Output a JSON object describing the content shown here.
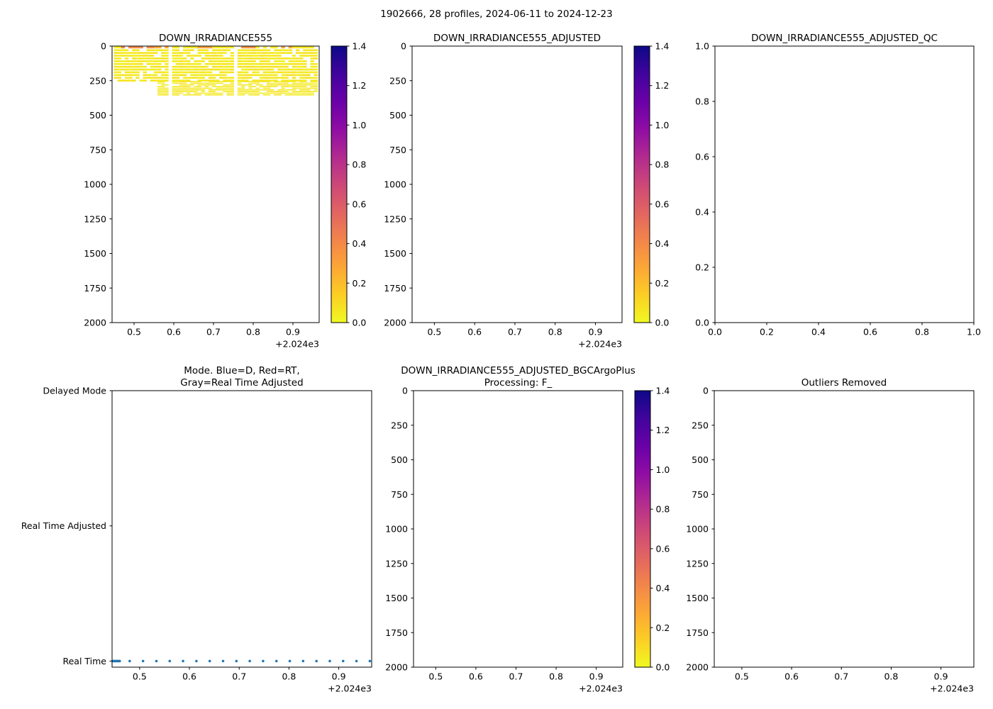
{
  "figure": {
    "suptitle": "1902666, 28 profiles, 2024-06-11 to 2024-12-23",
    "n_profiles": 28,
    "date_range": [
      "2024-06-11",
      "2024-12-23"
    ],
    "colors": {
      "background": "#ffffff",
      "axes": "#000000",
      "text": "#000000",
      "scatter_dot": "#1f77b4",
      "colormap_name": "plasma_r",
      "colormap_stops_low_to_high": [
        "#f0f921",
        "#fcce25",
        "#fca636",
        "#f2844b",
        "#e16462",
        "#cc4778",
        "#b12a90",
        "#8f0da4",
        "#6a00a8",
        "#41049d",
        "#0d0887"
      ]
    }
  },
  "chart_data": [
    {
      "id": "irr",
      "type": "heatmap",
      "title": [
        "DOWN_IRRADIANCE555"
      ],
      "xlim": [
        2024.4446,
        2024.9661
      ],
      "x_tick_values": [
        2024.5,
        2024.6,
        2024.7,
        2024.8,
        2024.9
      ],
      "x_tick_labels": [
        "0.5",
        "0.6",
        "0.7",
        "0.8",
        "0.9"
      ],
      "x_offset_label": "+2.024e3",
      "ylim_top_bottom": [
        0,
        2000
      ],
      "y_tick_values": [
        0,
        250,
        500,
        750,
        1000,
        1250,
        1500,
        1750,
        2000
      ],
      "y_tick_labels": [
        "0",
        "250",
        "500",
        "750",
        "1000",
        "1250",
        "1500",
        "1750",
        "2000"
      ],
      "colorbar": {
        "vmin": 0.0,
        "vmax": 1.4,
        "tick_values": [
          0.0,
          0.2,
          0.4,
          0.6,
          0.8,
          1.0,
          1.2,
          1.4
        ],
        "tick_labels": [
          "0.0",
          "0.2",
          "0.4",
          "0.6",
          "0.8",
          "1.0",
          "1.2",
          "1.4"
        ]
      },
      "heatmap": {
        "vmin": 0.0,
        "vmax": 1.4,
        "time_range": [
          2024.449,
          2024.962
        ],
        "coverage_segments": [
          {
            "t0": 2024.449,
            "t1": 2024.561,
            "depth_max": 250
          },
          {
            "t0": 2024.561,
            "t1": 2024.962,
            "depth_max": 350
          }
        ],
        "time_gaps": [
          2024.587,
          2024.752
        ],
        "row_zones": [
          {
            "d0": 0,
            "d1": 250,
            "row_step": 20
          },
          {
            "d0": 250,
            "d1": 350,
            "row_step": 12
          }
        ],
        "n_time_bins": 56,
        "missing_fraction": 0.16,
        "seed": 20241223,
        "base_value": 0.03,
        "surface_values": [
          {
            "t0": 2024.449,
            "t1": 2024.463,
            "value": 0.03
          },
          {
            "t0": 2024.463,
            "t1": 2024.546,
            "value": 0.4
          },
          {
            "t0": 2024.546,
            "t1": 2024.6,
            "value": 0.28
          },
          {
            "t0": 2024.6,
            "t1": 2024.664,
            "value": 0.05
          },
          {
            "t0": 2024.664,
            "t1": 2024.7,
            "value": 0.3
          },
          {
            "t0": 2024.7,
            "t1": 2024.755,
            "value": 0.05
          },
          {
            "t0": 2024.755,
            "t1": 2024.805,
            "value": 0.36
          },
          {
            "t0": 2024.805,
            "t1": 2024.859,
            "value": 0.05
          },
          {
            "t0": 2024.859,
            "t1": 2024.895,
            "value": 0.28
          },
          {
            "t0": 2024.895,
            "t1": 2024.962,
            "value": 0.05
          }
        ]
      }
    },
    {
      "id": "adj",
      "type": "heatmap",
      "title": [
        "DOWN_IRRADIANCE555_ADJUSTED"
      ],
      "xlim": [
        2024.4446,
        2024.9661
      ],
      "x_tick_values": [
        2024.5,
        2024.6,
        2024.7,
        2024.8,
        2024.9
      ],
      "x_tick_labels": [
        "0.5",
        "0.6",
        "0.7",
        "0.8",
        "0.9"
      ],
      "x_offset_label": "+2.024e3",
      "ylim_top_bottom": [
        0,
        2000
      ],
      "y_tick_values": [
        0,
        250,
        500,
        750,
        1000,
        1250,
        1500,
        1750,
        2000
      ],
      "y_tick_labels": [
        "0",
        "250",
        "500",
        "750",
        "1000",
        "1250",
        "1500",
        "1750",
        "2000"
      ],
      "colorbar": {
        "vmin": 0.0,
        "vmax": 1.4,
        "tick_values": [
          0.0,
          0.2,
          0.4,
          0.6,
          0.8,
          1.0,
          1.2,
          1.4
        ],
        "tick_labels": [
          "0.0",
          "0.2",
          "0.4",
          "0.6",
          "0.8",
          "1.0",
          "1.2",
          "1.4"
        ]
      },
      "heatmap": null
    },
    {
      "id": "qc",
      "type": "heatmap",
      "title": [
        "DOWN_IRRADIANCE555_ADJUSTED_QC"
      ],
      "xlim": [
        0.0,
        1.0
      ],
      "x_tick_values": [
        0.0,
        0.2,
        0.4,
        0.6,
        0.8,
        1.0
      ],
      "x_tick_labels": [
        "0.0",
        "0.2",
        "0.4",
        "0.6",
        "0.8",
        "1.0"
      ],
      "x_offset_label": null,
      "ylim_top_bottom": [
        1.0,
        0.0
      ],
      "y_tick_values": [
        1.0,
        0.8,
        0.6,
        0.4,
        0.2,
        0.0
      ],
      "y_tick_labels": [
        "1.0",
        "0.8",
        "0.6",
        "0.4",
        "0.2",
        "0.0"
      ],
      "colorbar": null,
      "heatmap": null
    },
    {
      "id": "mode",
      "type": "scatter",
      "title": [
        "Mode. Blue=D, Red=RT,",
        "Gray=Real Time Adjusted"
      ],
      "xlim": [
        2024.4446,
        2024.9661
      ],
      "x_tick_values": [
        2024.5,
        2024.6,
        2024.7,
        2024.8,
        2024.9
      ],
      "x_tick_labels": [
        "0.5",
        "0.6",
        "0.7",
        "0.8",
        "0.9"
      ],
      "x_offset_label": "+2.024e3",
      "ylim_top_bottom": [
        2.0,
        -0.045
      ],
      "y_tick_values": [
        2,
        1,
        0
      ],
      "y_tick_labels": [
        "Delayed Mode",
        "Real Time Adjusted",
        "Real Time"
      ],
      "colorbar": null,
      "legend_note": "Blue=D, Red=RT, Gray=Real Time Adjusted",
      "points": {
        "y_category": "Real Time",
        "y_value": 0,
        "x": [
          2024.446,
          2024.4478,
          2024.4495,
          2024.4513,
          2024.453,
          2024.4548,
          2024.4565,
          2024.4583,
          2024.46,
          2024.48,
          2024.5068,
          2024.5336,
          2024.5604,
          2024.5872,
          2024.614,
          2024.6408,
          2024.6676,
          2024.6944,
          2024.7212,
          2024.748,
          2024.7748,
          2024.8016,
          2024.8284,
          2024.8552,
          2024.882,
          2024.9088,
          2024.9356,
          2024.9624
        ]
      }
    },
    {
      "id": "bgc",
      "type": "heatmap",
      "title": [
        "DOWN_IRRADIANCE555_ADJUSTED_BGCArgoPlus",
        "Processing: F_"
      ],
      "xlim": [
        2024.4446,
        2024.9661
      ],
      "x_tick_values": [
        2024.5,
        2024.6,
        2024.7,
        2024.8,
        2024.9
      ],
      "x_tick_labels": [
        "0.5",
        "0.6",
        "0.7",
        "0.8",
        "0.9"
      ],
      "x_offset_label": "+2.024e3",
      "ylim_top_bottom": [
        0,
        2000
      ],
      "y_tick_values": [
        0,
        250,
        500,
        750,
        1000,
        1250,
        1500,
        1750,
        2000
      ],
      "y_tick_labels": [
        "0",
        "250",
        "500",
        "750",
        "1000",
        "1250",
        "1500",
        "1750",
        "2000"
      ],
      "colorbar": {
        "vmin": 0.0,
        "vmax": 1.4,
        "tick_values": [
          0.0,
          0.2,
          0.4,
          0.6,
          0.8,
          1.0,
          1.2,
          1.4
        ],
        "tick_labels": [
          "0.0",
          "0.2",
          "0.4",
          "0.6",
          "0.8",
          "1.0",
          "1.2",
          "1.4"
        ]
      },
      "heatmap": null
    },
    {
      "id": "out",
      "type": "heatmap",
      "title": [
        "Outliers Removed"
      ],
      "xlim": [
        2024.4446,
        2024.9661
      ],
      "x_tick_values": [
        2024.5,
        2024.6,
        2024.7,
        2024.8,
        2024.9
      ],
      "x_tick_labels": [
        "0.5",
        "0.6",
        "0.7",
        "0.8",
        "0.9"
      ],
      "x_offset_label": "+2.024e3",
      "ylim_top_bottom": [
        0,
        2000
      ],
      "y_tick_values": [
        0,
        250,
        500,
        750,
        1000,
        1250,
        1500,
        1750,
        2000
      ],
      "y_tick_labels": [
        "0",
        "250",
        "500",
        "750",
        "1000",
        "1250",
        "1500",
        "1750",
        "2000"
      ],
      "colorbar": null,
      "heatmap": null
    }
  ]
}
